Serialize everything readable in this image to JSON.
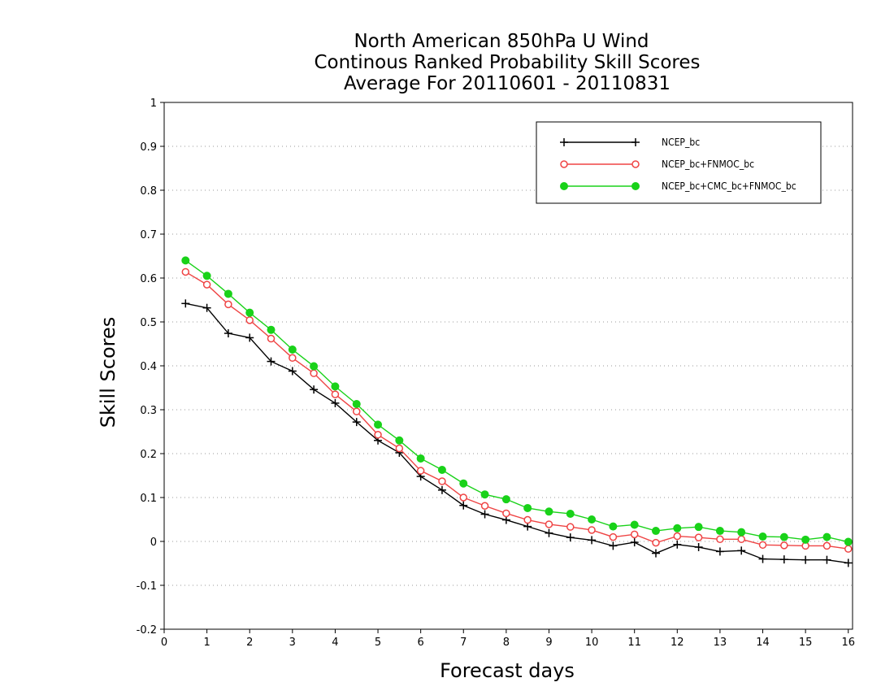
{
  "chart_data": {
    "type": "line",
    "title": [
      "North American 850hPa U Wind",
      "Continous Ranked Probability Skill Scores",
      "Average For 20110601 - 20110831"
    ],
    "xlabel": "Forecast days",
    "ylabel": "Skill Scores",
    "xlim": [
      0,
      16.1
    ],
    "ylim": [
      -0.2,
      1
    ],
    "xticks": [
      0,
      1,
      2,
      3,
      4,
      5,
      6,
      7,
      8,
      9,
      10,
      11,
      12,
      13,
      14,
      15,
      16
    ],
    "yticks": [
      -0.2,
      -0.1,
      0,
      0.1,
      0.2,
      0.3,
      0.4,
      0.5,
      0.6,
      0.7,
      0.8,
      0.9,
      1
    ],
    "ytick_labels": [
      "-0.2",
      "-0.1",
      "0",
      "0.1",
      "0.2",
      "0.3",
      "0.4",
      "0.5",
      "0.6",
      "0.7",
      "0.8",
      "0.9",
      "1"
    ],
    "grid": "horizontal dotted",
    "legend_position": "top-right",
    "x": [
      0.5,
      1,
      1.5,
      2,
      2.5,
      3,
      3.5,
      4,
      4.5,
      5,
      5.5,
      6,
      6.5,
      7,
      7.5,
      8,
      8.5,
      9,
      9.5,
      10,
      10.5,
      11,
      11.5,
      12,
      12.5,
      13,
      13.5,
      14,
      14.5,
      15,
      15.5,
      16
    ],
    "series": [
      {
        "name": "NCEP_bc",
        "color": "#000000",
        "marker": "plus",
        "values": [
          0.542,
          0.532,
          0.474,
          0.464,
          0.41,
          0.388,
          0.346,
          0.315,
          0.272,
          0.23,
          0.202,
          0.148,
          0.117,
          0.082,
          0.062,
          0.049,
          0.034,
          0.019,
          0.009,
          0.003,
          -0.01,
          -0.002,
          -0.027,
          -0.007,
          -0.013,
          -0.023,
          -0.021,
          -0.04,
          -0.041,
          -0.042,
          -0.042,
          -0.049
        ]
      },
      {
        "name": "NCEP_bc+FNMOC_bc",
        "color": "#ef4444",
        "marker": "open-circle",
        "values": [
          0.614,
          0.585,
          0.54,
          0.504,
          0.462,
          0.418,
          0.383,
          0.335,
          0.296,
          0.243,
          0.212,
          0.161,
          0.137,
          0.1,
          0.081,
          0.064,
          0.049,
          0.039,
          0.033,
          0.026,
          0.01,
          0.016,
          -0.003,
          0.012,
          0.009,
          0.005,
          0.005,
          -0.008,
          -0.009,
          -0.01,
          -0.01,
          -0.017
        ]
      },
      {
        "name": "NCEP_bc+CMC_bc+FNMOC_bc",
        "color": "#19d219",
        "marker": "filled-circle",
        "values": [
          0.64,
          0.605,
          0.564,
          0.521,
          0.482,
          0.437,
          0.399,
          0.353,
          0.313,
          0.266,
          0.23,
          0.189,
          0.163,
          0.132,
          0.107,
          0.096,
          0.076,
          0.068,
          0.063,
          0.05,
          0.034,
          0.038,
          0.024,
          0.03,
          0.033,
          0.024,
          0.021,
          0.011,
          0.01,
          0.004,
          0.01,
          -0.001
        ]
      }
    ]
  }
}
